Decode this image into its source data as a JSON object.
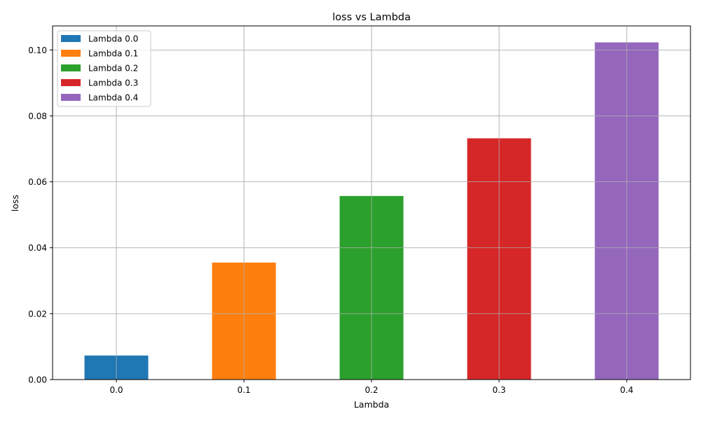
{
  "chart_data": {
    "type": "bar",
    "title": "loss vs Lambda",
    "xlabel": "Lambda",
    "ylabel": "loss",
    "categories": [
      "0.0",
      "0.1",
      "0.2",
      "0.3",
      "0.4"
    ],
    "x": [
      0.0,
      0.1,
      0.2,
      0.3,
      0.4
    ],
    "xlim": [
      -0.05,
      0.45
    ],
    "ylim": [
      0,
      0.1073
    ],
    "yticks": [
      0.0,
      0.02,
      0.04,
      0.06,
      0.08,
      0.1
    ],
    "ytick_labels": [
      "0.00",
      "0.02",
      "0.04",
      "0.06",
      "0.08",
      "0.10"
    ],
    "bar_width": 0.05,
    "grid": true,
    "legend_position": "top-left",
    "series": [
      {
        "name": "Lambda 0.0",
        "x": 0.0,
        "value": 0.0073,
        "color": "#1f77b4"
      },
      {
        "name": "Lambda 0.1",
        "x": 0.1,
        "value": 0.0355,
        "color": "#ff7f0e"
      },
      {
        "name": "Lambda 0.2",
        "x": 0.2,
        "value": 0.0557,
        "color": "#2ca02c"
      },
      {
        "name": "Lambda 0.3",
        "x": 0.3,
        "value": 0.0732,
        "color": "#d62728"
      },
      {
        "name": "Lambda 0.4",
        "x": 0.4,
        "value": 0.1023,
        "color": "#9467bd"
      }
    ]
  }
}
